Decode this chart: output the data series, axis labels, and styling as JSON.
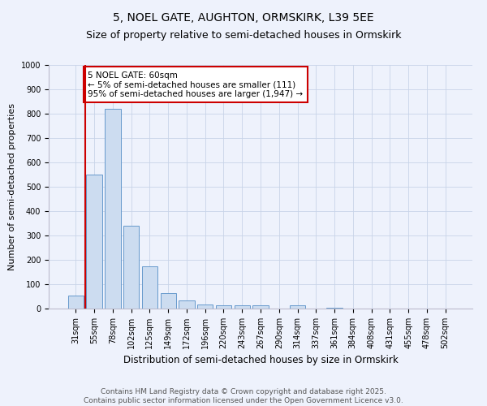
{
  "title": "5, NOEL GATE, AUGHTON, ORMSKIRK, L39 5EE",
  "subtitle": "Size of property relative to semi-detached houses in Ormskirk",
  "xlabel": "Distribution of semi-detached houses by size in Ormskirk",
  "ylabel": "Number of semi-detached properties",
  "categories": [
    "31sqm",
    "55sqm",
    "78sqm",
    "102sqm",
    "125sqm",
    "149sqm",
    "172sqm",
    "196sqm",
    "220sqm",
    "243sqm",
    "267sqm",
    "290sqm",
    "314sqm",
    "337sqm",
    "361sqm",
    "384sqm",
    "408sqm",
    "431sqm",
    "455sqm",
    "478sqm",
    "502sqm"
  ],
  "values": [
    55,
    550,
    820,
    340,
    175,
    65,
    35,
    18,
    15,
    12,
    12,
    0,
    12,
    0,
    5,
    0,
    0,
    0,
    0,
    0,
    0
  ],
  "bar_color": "#ccdcf0",
  "bar_edge_color": "#6699cc",
  "red_line_x": 0.5,
  "red_line_color": "#cc0000",
  "annotation_text": "5 NOEL GATE: 60sqm\n← 5% of semi-detached houses are smaller (111)\n95% of semi-detached houses are larger (1,947) →",
  "annotation_box_color": "#ffffff",
  "annotation_edge_color": "#cc0000",
  "ylim": [
    0,
    1000
  ],
  "yticks": [
    0,
    100,
    200,
    300,
    400,
    500,
    600,
    700,
    800,
    900,
    1000
  ],
  "grid_color": "#c8d4e8",
  "background_color": "#eef2fc",
  "footer_text": "Contains HM Land Registry data © Crown copyright and database right 2025.\nContains public sector information licensed under the Open Government Licence v3.0.",
  "title_fontsize": 10,
  "subtitle_fontsize": 9,
  "xlabel_fontsize": 8.5,
  "ylabel_fontsize": 8,
  "tick_fontsize": 7,
  "annotation_fontsize": 7.5,
  "footer_fontsize": 6.5
}
